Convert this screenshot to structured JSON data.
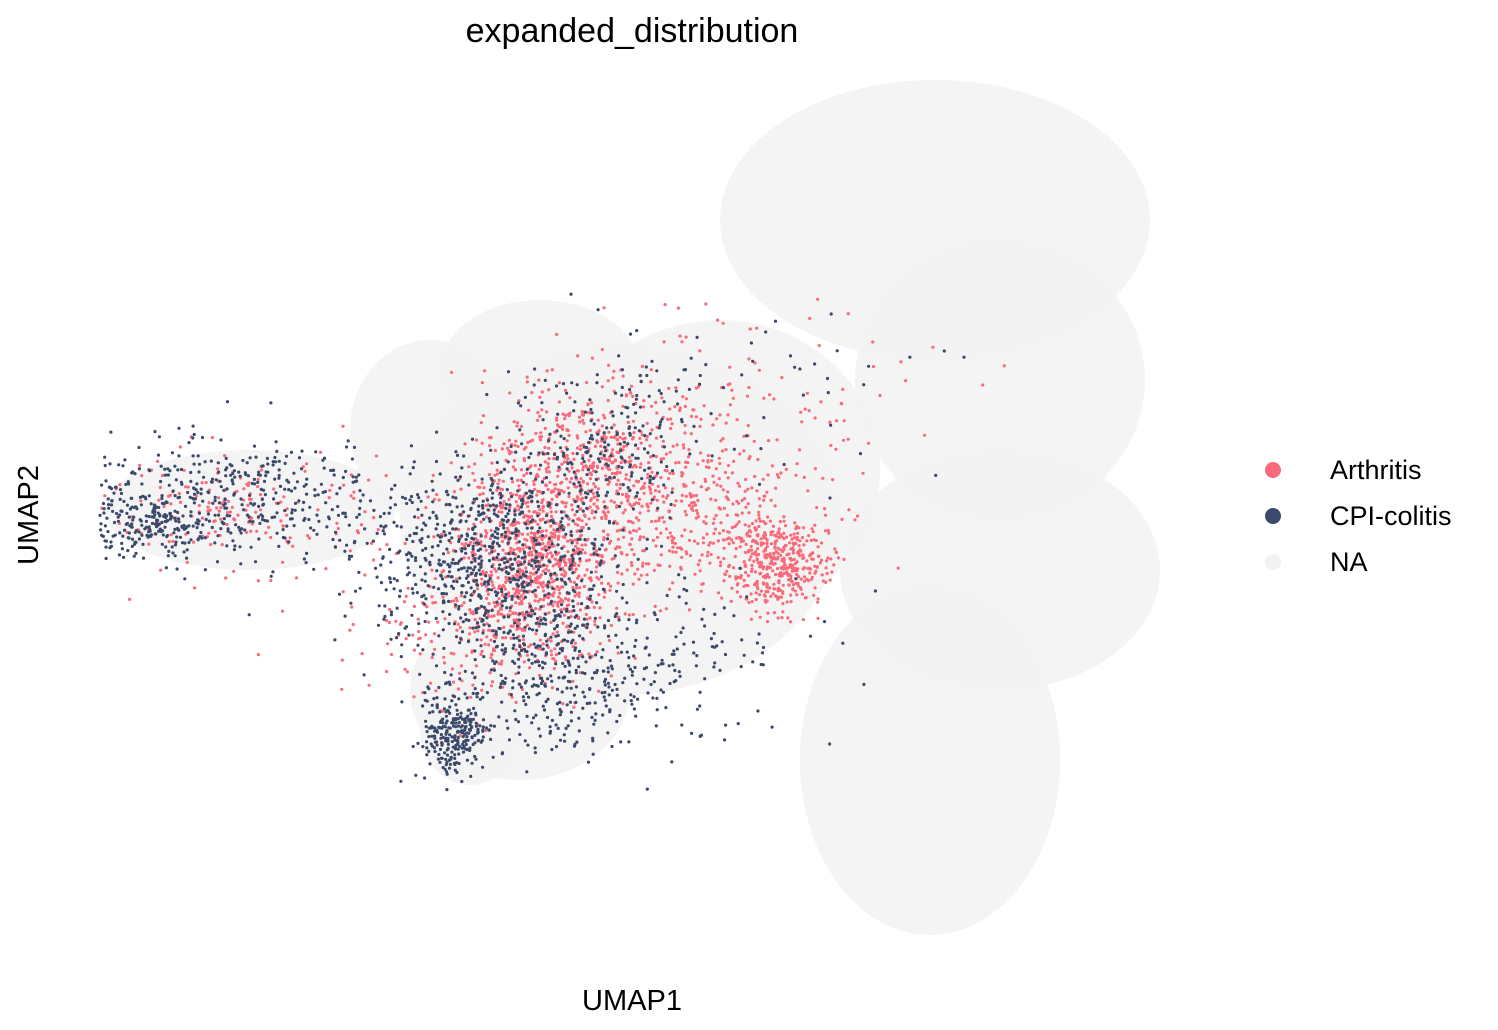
{
  "chart_data": {
    "type": "scatter",
    "title": "expanded_distribution",
    "xlabel": "UMAP1",
    "ylabel": "UMAP2",
    "grid": false,
    "legend_position": "right",
    "background_category": "NA",
    "colors": {
      "Arthritis": "#f96b7a",
      "CPI-colitis": "#3b4a6b",
      "NA": "#f2f2f2"
    },
    "legend": [
      {
        "label": "Arthritis",
        "color": "#f96b7a"
      },
      {
        "label": "CPI-colitis",
        "color": "#3b4a6b"
      },
      {
        "label": "NA",
        "color": "#f2f2f2"
      }
    ],
    "series": [
      {
        "name": "Arthritis",
        "clusters": [
          {
            "cx": 533,
            "cy": 560,
            "sx": 42,
            "sy": 48,
            "n": 900
          },
          {
            "cx": 600,
            "cy": 460,
            "sx": 55,
            "sy": 45,
            "n": 520
          },
          {
            "cx": 780,
            "cy": 565,
            "sx": 26,
            "sy": 22,
            "n": 380
          },
          {
            "cx": 700,
            "cy": 520,
            "sx": 60,
            "sy": 40,
            "n": 320
          },
          {
            "cx": 240,
            "cy": 510,
            "sx": 70,
            "sy": 30,
            "n": 190
          },
          {
            "cx": 470,
            "cy": 640,
            "sx": 70,
            "sy": 40,
            "n": 160
          },
          {
            "cx": 760,
            "cy": 390,
            "sx": 110,
            "sy": 45,
            "n": 90
          }
        ]
      },
      {
        "name": "CPI-colitis",
        "clusters": [
          {
            "cx": 490,
            "cy": 560,
            "sx": 60,
            "sy": 50,
            "n": 800
          },
          {
            "cx": 455,
            "cy": 735,
            "sx": 16,
            "sy": 22,
            "n": 260
          },
          {
            "cx": 560,
            "cy": 680,
            "sx": 55,
            "sy": 40,
            "n": 330
          },
          {
            "cx": 220,
            "cy": 500,
            "sx": 80,
            "sy": 32,
            "n": 420
          },
          {
            "cx": 150,
            "cy": 525,
            "sx": 30,
            "sy": 16,
            "n": 160
          },
          {
            "cx": 610,
            "cy": 440,
            "sx": 45,
            "sy": 40,
            "n": 200
          },
          {
            "cx": 700,
            "cy": 660,
            "sx": 55,
            "sy": 40,
            "n": 80
          },
          {
            "cx": 760,
            "cy": 380,
            "sx": 90,
            "sy": 50,
            "n": 50
          }
        ]
      }
    ],
    "background_blobs": [
      {
        "cx": 935,
        "cy": 220,
        "rx": 215,
        "ry": 140
      },
      {
        "cx": 1000,
        "cy": 380,
        "rx": 145,
        "ry": 140
      },
      {
        "cx": 1000,
        "cy": 570,
        "rx": 160,
        "ry": 120
      },
      {
        "cx": 930,
        "cy": 760,
        "rx": 130,
        "ry": 175
      },
      {
        "cx": 620,
        "cy": 520,
        "rx": 220,
        "ry": 175
      },
      {
        "cx": 720,
        "cy": 470,
        "rx": 160,
        "ry": 150
      },
      {
        "cx": 520,
        "cy": 690,
        "rx": 110,
        "ry": 90
      },
      {
        "cx": 470,
        "cy": 730,
        "rx": 50,
        "ry": 55
      },
      {
        "cx": 250,
        "cy": 510,
        "rx": 145,
        "ry": 60
      },
      {
        "cx": 430,
        "cy": 430,
        "rx": 80,
        "ry": 90
      },
      {
        "cx": 540,
        "cy": 370,
        "rx": 100,
        "ry": 70
      }
    ]
  }
}
